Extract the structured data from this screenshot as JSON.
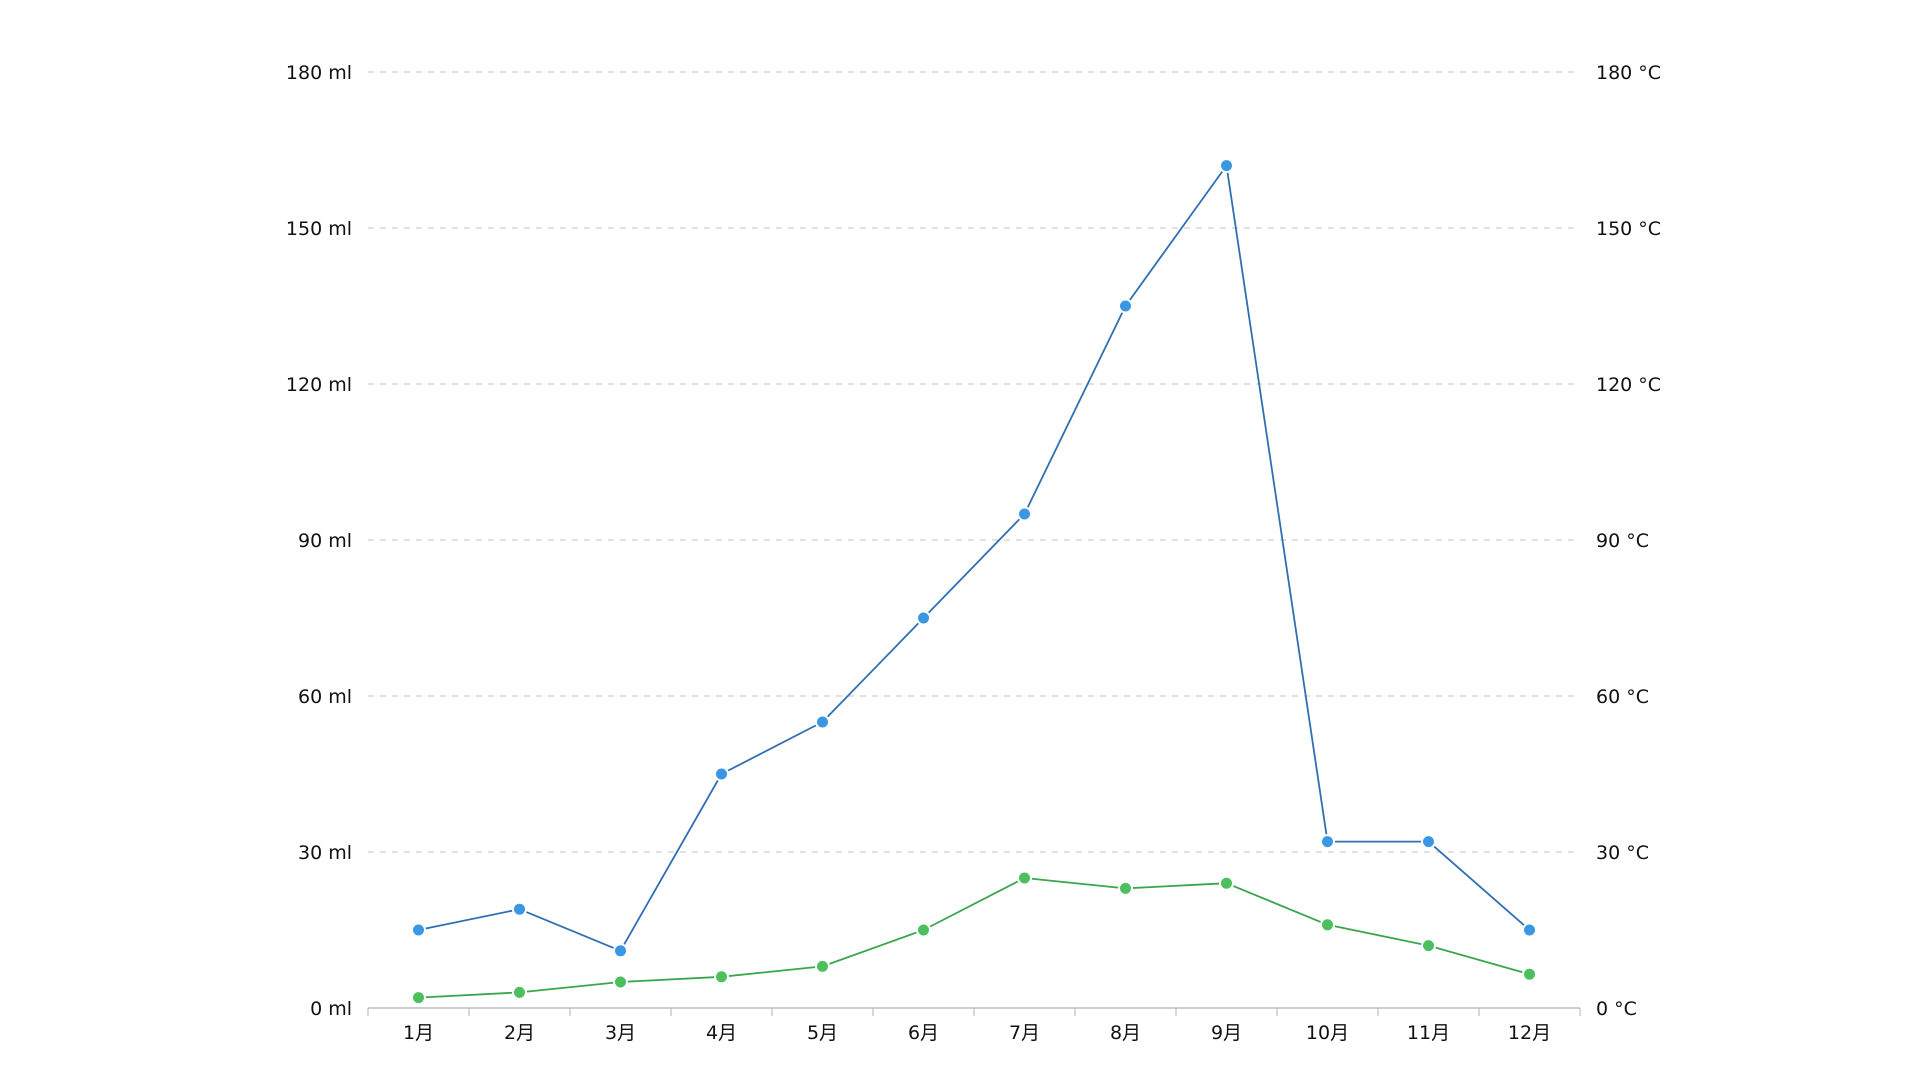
{
  "chart_data": {
    "type": "line",
    "title": "",
    "xlabel": "",
    "ylabel": "",
    "x": [
      "1月",
      "2月",
      "3月",
      "4月",
      "5月",
      "6月",
      "7月",
      "8月",
      "9月",
      "10月",
      "11月",
      "12月"
    ],
    "left_axis": {
      "min": 0,
      "max": 180,
      "ticks": [
        0,
        30,
        60,
        90,
        120,
        150,
        180
      ],
      "unit": "ml",
      "tick_labels": [
        "0 ml",
        "30 ml",
        "60 ml",
        "90 ml",
        "120 ml",
        "150 ml",
        "180 ml"
      ]
    },
    "right_axis": {
      "min": 0,
      "max": 180,
      "ticks": [
        0,
        30,
        60,
        90,
        120,
        150,
        180
      ],
      "unit": "°C",
      "tick_labels": [
        "0 °C",
        "30 °C",
        "60 °C",
        "90 °C",
        "120 °C",
        "150 °C",
        "180 °C"
      ]
    },
    "series": [
      {
        "axis": "left",
        "line_color": "#2f6fb2",
        "marker_fill": "#3b97e3",
        "values": [
          15,
          19,
          11,
          45,
          55,
          75,
          95,
          135,
          162,
          32,
          32,
          15
        ]
      },
      {
        "axis": "right",
        "line_color": "#3aa64c",
        "marker_fill": "#4cbf5f",
        "values": [
          2,
          3,
          5,
          6,
          8,
          15,
          25,
          23,
          24,
          16,
          12,
          6.5
        ]
      }
    ],
    "grid": true,
    "legend": "none"
  }
}
